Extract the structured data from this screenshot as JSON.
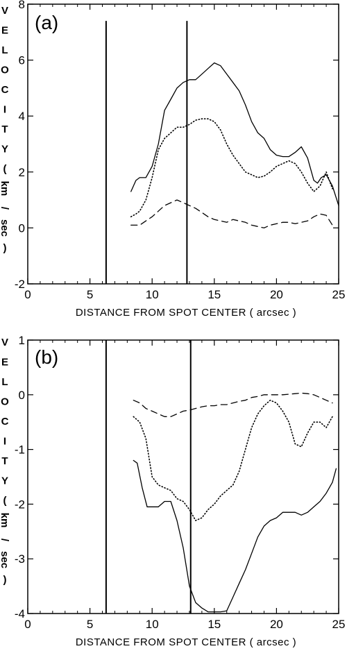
{
  "chart_data": [
    {
      "type": "line",
      "panel_label": "(a)",
      "xlabel": "DISTANCE FROM SPOT CENTER ( arcsec )",
      "ylabel": "VELOCITY (km/sec)",
      "ylabel_chars": [
        "V",
        "E",
        "L",
        "O",
        "C",
        "I",
        "T",
        "Y",
        "(",
        "km",
        "/",
        "sec",
        ")"
      ],
      "xlim": [
        0,
        25
      ],
      "ylim": [
        -2,
        8
      ],
      "xticks": [
        0,
        5,
        10,
        15,
        20,
        25
      ],
      "yticks": [
        -2,
        0,
        2,
        4,
        6,
        8
      ],
      "xtick_labels": [
        "0",
        "5",
        "10",
        "15",
        "20",
        "25"
      ],
      "ytick_labels": [
        "-2",
        "0",
        "2",
        "4",
        "6",
        "8"
      ],
      "grid": false,
      "vlines": [
        {
          "x": 6.3,
          "y_top": 7.4
        },
        {
          "x": 12.8,
          "y_top": 7.4
        }
      ],
      "series": [
        {
          "style": "solid",
          "x": [
            8.3,
            8.7,
            9.0,
            9.5,
            10.0,
            10.5,
            11.0,
            11.5,
            12.0,
            12.5,
            13.0,
            13.5,
            14.0,
            14.5,
            15.0,
            15.5,
            16.0,
            16.5,
            17.0,
            17.5,
            18.0,
            18.5,
            19.0,
            19.5,
            20.0,
            20.5,
            21.0,
            21.5,
            22.0,
            22.5,
            23.0,
            23.3,
            23.6,
            24.0,
            24.5,
            25.0
          ],
          "y": [
            1.3,
            1.7,
            1.8,
            1.8,
            2.2,
            3.0,
            4.2,
            4.6,
            5.0,
            5.2,
            5.3,
            5.3,
            5.5,
            5.7,
            5.9,
            5.8,
            5.5,
            5.2,
            4.9,
            4.4,
            3.8,
            3.4,
            3.2,
            2.8,
            2.6,
            2.55,
            2.55,
            2.7,
            2.9,
            2.5,
            1.7,
            1.6,
            1.8,
            1.9,
            1.5,
            0.8
          ]
        },
        {
          "style": "dotted",
          "x": [
            8.3,
            8.7,
            9.0,
            9.5,
            10.0,
            10.5,
            11.0,
            11.5,
            12.0,
            12.5,
            13.0,
            13.5,
            14.0,
            14.5,
            15.0,
            15.5,
            16.0,
            16.5,
            17.0,
            17.5,
            18.0,
            18.5,
            19.0,
            19.5,
            20.0,
            20.5,
            21.0,
            21.5,
            22.0,
            22.5,
            23.0,
            23.5,
            24.0,
            24.5
          ],
          "y": [
            0.4,
            0.5,
            0.6,
            1.0,
            1.8,
            2.8,
            3.2,
            3.4,
            3.6,
            3.6,
            3.7,
            3.85,
            3.9,
            3.9,
            3.8,
            3.5,
            3.0,
            2.6,
            2.3,
            2.0,
            1.9,
            1.8,
            1.85,
            2.0,
            2.2,
            2.3,
            2.4,
            2.3,
            2.0,
            1.6,
            1.3,
            1.5,
            2.0,
            1.4
          ]
        },
        {
          "style": "dashed",
          "x": [
            8.3,
            9.0,
            9.5,
            10.0,
            10.5,
            11.0,
            11.5,
            12.0,
            12.5,
            13.0,
            13.5,
            14.0,
            14.5,
            15.0,
            15.5,
            16.0,
            16.5,
            17.0,
            17.5,
            18.0,
            18.5,
            19.0,
            19.5,
            20.0,
            20.5,
            21.0,
            21.5,
            22.0,
            22.5,
            23.0,
            23.5,
            24.0,
            24.5
          ],
          "y": [
            0.1,
            0.1,
            0.25,
            0.4,
            0.6,
            0.8,
            0.9,
            1.0,
            0.9,
            0.8,
            0.7,
            0.55,
            0.4,
            0.3,
            0.25,
            0.2,
            0.3,
            0.25,
            0.2,
            0.1,
            0.05,
            0.0,
            0.1,
            0.15,
            0.2,
            0.2,
            0.15,
            0.2,
            0.25,
            0.4,
            0.5,
            0.45,
            0.1
          ]
        }
      ]
    },
    {
      "type": "line",
      "panel_label": "(b)",
      "xlabel": "DISTANCE FROM SPOT CENTER ( arcsec )",
      "ylabel": "VELOCITY (km/sec)",
      "ylabel_chars": [
        "V",
        "E",
        "L",
        "O",
        "C",
        "I",
        "T",
        "Y",
        "(",
        "km",
        "/",
        "sec",
        ")"
      ],
      "xlim": [
        0,
        25
      ],
      "ylim": [
        -4,
        1
      ],
      "xticks": [
        0,
        5,
        10,
        15,
        20,
        25
      ],
      "yticks": [
        -4,
        -3,
        -2,
        -1,
        0,
        1
      ],
      "xtick_labels": [
        "0",
        "5",
        "10",
        "15",
        "20",
        "25"
      ],
      "ytick_labels": [
        "-4",
        "-3",
        "-2",
        "-1",
        "0",
        "1"
      ],
      "grid": false,
      "vlines": [
        {
          "x": 6.3,
          "y_top": 1.0
        },
        {
          "x": 13.1,
          "y_top": 1.0
        }
      ],
      "series": [
        {
          "style": "solid",
          "x": [
            8.5,
            8.8,
            9.2,
            9.6,
            10.0,
            10.5,
            11.0,
            11.5,
            12.0,
            12.5,
            13.0,
            13.5,
            14.0,
            14.5,
            15.0,
            15.5,
            16.0,
            16.5,
            17.0,
            17.5,
            18.0,
            18.5,
            19.0,
            19.5,
            20.0,
            20.5,
            21.0,
            21.5,
            22.0,
            22.5,
            23.0,
            23.5,
            24.0,
            24.5,
            24.8
          ],
          "y": [
            -1.2,
            -1.25,
            -1.7,
            -2.05,
            -2.05,
            -2.05,
            -1.95,
            -1.95,
            -2.3,
            -2.8,
            -3.5,
            -3.8,
            -3.9,
            -3.97,
            -3.97,
            -3.97,
            -3.95,
            -3.7,
            -3.45,
            -3.2,
            -2.9,
            -2.6,
            -2.4,
            -2.3,
            -2.25,
            -2.15,
            -2.15,
            -2.15,
            -2.2,
            -2.15,
            -2.05,
            -1.95,
            -1.8,
            -1.6,
            -1.35
          ]
        },
        {
          "style": "dotted",
          "x": [
            8.5,
            9.0,
            9.5,
            10.0,
            10.5,
            11.0,
            11.5,
            12.0,
            12.5,
            13.0,
            13.5,
            14.0,
            14.5,
            15.0,
            15.5,
            16.0,
            16.5,
            17.0,
            17.5,
            18.0,
            18.5,
            19.0,
            19.5,
            20.0,
            20.5,
            21.0,
            21.5,
            22.0,
            22.5,
            23.0,
            23.5,
            24.0,
            24.5
          ],
          "y": [
            -0.4,
            -0.5,
            -0.8,
            -1.5,
            -1.65,
            -1.7,
            -1.75,
            -1.9,
            -1.95,
            -2.1,
            -2.3,
            -2.25,
            -2.1,
            -2.0,
            -1.85,
            -1.75,
            -1.65,
            -1.4,
            -1.0,
            -0.6,
            -0.35,
            -0.2,
            -0.1,
            -0.15,
            -0.3,
            -0.5,
            -0.9,
            -0.95,
            -0.7,
            -0.5,
            -0.5,
            -0.6,
            -0.4
          ]
        },
        {
          "style": "dashed",
          "x": [
            8.5,
            9.0,
            9.5,
            10.0,
            10.5,
            11.0,
            11.5,
            12.0,
            12.5,
            13.0,
            13.5,
            14.0,
            14.5,
            15.0,
            15.5,
            16.0,
            16.5,
            17.0,
            17.5,
            18.0,
            18.5,
            19.0,
            19.5,
            20.0,
            20.5,
            21.0,
            21.5,
            22.0,
            22.5,
            23.0,
            23.5,
            24.0,
            24.5
          ],
          "y": [
            -0.1,
            -0.15,
            -0.25,
            -0.3,
            -0.35,
            -0.4,
            -0.4,
            -0.35,
            -0.3,
            -0.28,
            -0.25,
            -0.22,
            -0.2,
            -0.2,
            -0.18,
            -0.18,
            -0.15,
            -0.12,
            -0.1,
            -0.05,
            -0.03,
            0.0,
            0.0,
            0.0,
            0.0,
            0.01,
            0.02,
            0.03,
            0.02,
            0.0,
            -0.05,
            -0.1,
            -0.15
          ]
        }
      ]
    }
  ]
}
